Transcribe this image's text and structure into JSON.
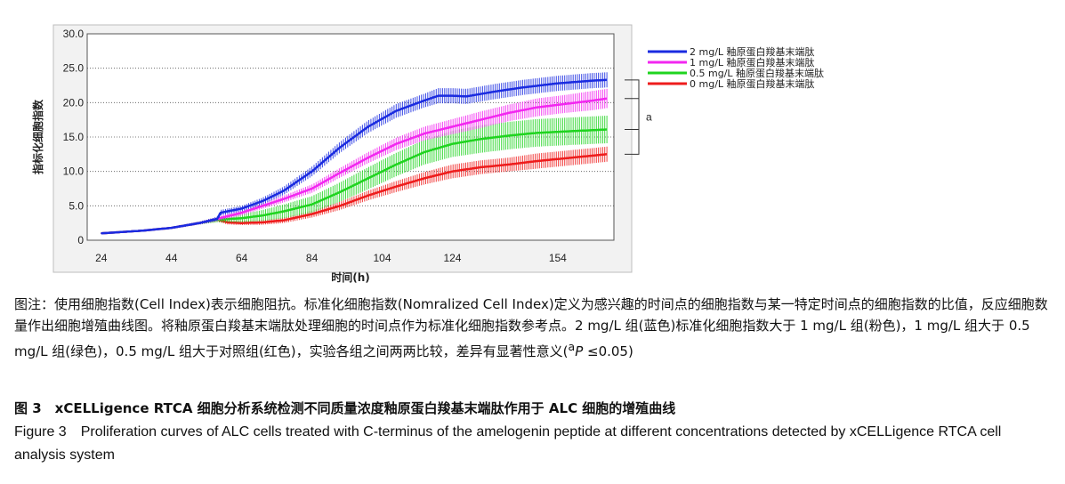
{
  "chart_data": {
    "type": "line",
    "title": "",
    "xlabel": "时间(h)",
    "ylabel": "指标化细胞指数",
    "xlim": [
      20,
      170
    ],
    "ylim": [
      0,
      30
    ],
    "x_ticks": [
      "24",
      "44",
      "64",
      "84",
      "104",
      "124",
      "154"
    ],
    "y_ticks": [
      "0",
      "5.0",
      "10.0",
      "15.0",
      "20.0",
      "25.0",
      "30.0"
    ],
    "grid": "horizontal-dotted",
    "legend_position": "right",
    "annotation": "a",
    "series": [
      {
        "name": "2 mg/L  釉原蛋白羧基末端肽",
        "color": "#1a2be0",
        "x": [
          24,
          36,
          44,
          52,
          57,
          58,
          64,
          70,
          76,
          84,
          92,
          100,
          108,
          116,
          120,
          124,
          128,
          136,
          144,
          154,
          164,
          168
        ],
        "y": [
          1.0,
          1.4,
          1.8,
          2.5,
          3.1,
          4.0,
          4.6,
          5.7,
          7.2,
          10.0,
          13.5,
          16.5,
          18.8,
          20.3,
          21.0,
          21.0,
          20.9,
          21.6,
          22.2,
          22.8,
          23.2,
          23.3
        ],
        "err": [
          0.1,
          0.1,
          0.15,
          0.2,
          0.3,
          0.4,
          0.4,
          0.5,
          0.6,
          0.7,
          0.8,
          0.9,
          1.0,
          1.0,
          1.1,
          1.1,
          1.1,
          1.1,
          1.1,
          1.1,
          1.1,
          1.1
        ]
      },
      {
        "name": "1 mg/L  釉原蛋白羧基末端肽",
        "color": "#f227f0",
        "x": [
          24,
          36,
          44,
          52,
          57,
          64,
          70,
          76,
          84,
          92,
          100,
          108,
          116,
          124,
          132,
          140,
          148,
          156,
          164,
          168
        ],
        "y": [
          1.0,
          1.4,
          1.8,
          2.5,
          3.1,
          4.0,
          5.0,
          6.0,
          7.5,
          9.8,
          12.0,
          14.0,
          15.5,
          16.5,
          17.5,
          18.5,
          19.3,
          19.8,
          20.3,
          20.6
        ],
        "err": [
          0.1,
          0.1,
          0.15,
          0.2,
          0.3,
          0.4,
          0.4,
          0.5,
          0.6,
          0.7,
          0.8,
          0.9,
          1.0,
          1.1,
          1.2,
          1.2,
          1.3,
          1.3,
          1.4,
          1.4
        ]
      },
      {
        "name": "0.5 mg/L  釉原蛋白羧基末端肽",
        "color": "#1fd41f",
        "x": [
          24,
          36,
          44,
          52,
          57,
          64,
          70,
          76,
          84,
          92,
          100,
          108,
          116,
          124,
          132,
          140,
          148,
          156,
          164,
          168
        ],
        "y": [
          1.0,
          1.4,
          1.8,
          2.5,
          3.0,
          3.2,
          3.6,
          4.2,
          5.2,
          7.0,
          9.0,
          11.0,
          12.8,
          14.0,
          14.7,
          15.2,
          15.6,
          15.8,
          16.0,
          16.1
        ],
        "err": [
          0.1,
          0.1,
          0.15,
          0.2,
          0.4,
          0.6,
          0.8,
          1.0,
          1.2,
          1.4,
          1.6,
          1.7,
          1.8,
          1.9,
          2.0,
          2.0,
          2.0,
          2.0,
          2.0,
          2.0
        ]
      },
      {
        "name": "0 mg/L  釉原蛋白羧基末端肽",
        "color": "#ee1c1c",
        "x": [
          24,
          36,
          44,
          52,
          57,
          60,
          64,
          70,
          76,
          84,
          92,
          100,
          108,
          116,
          124,
          132,
          140,
          148,
          156,
          164,
          168
        ],
        "y": [
          1.0,
          1.4,
          1.8,
          2.5,
          3.0,
          2.6,
          2.5,
          2.6,
          2.9,
          3.8,
          5.0,
          6.5,
          7.8,
          9.0,
          10.0,
          10.6,
          11.0,
          11.5,
          11.9,
          12.3,
          12.5
        ],
        "err": [
          0.1,
          0.1,
          0.15,
          0.2,
          0.3,
          0.3,
          0.3,
          0.35,
          0.4,
          0.5,
          0.6,
          0.7,
          0.8,
          0.9,
          1.0,
          1.0,
          1.0,
          1.1,
          1.1,
          1.1,
          1.1
        ]
      }
    ]
  },
  "caption": {
    "note": "图注：使用细胞指数(Cell Index)表示细胞阻抗。标准化细胞指数(Nomralized Cell Index)定义为感兴趣的时间点的细胞指数与某一特定时间点的细胞指数的比值，反应细胞数量作出细胞增殖曲线图。将釉原蛋白羧基末端肽处理细胞的时间点作为标准化细胞指数参考点。2 mg/L 组(蓝色)标准化细胞指数大于 1 mg/L 组(粉色)，1 mg/L 组大于 0.5 mg/L 组(绿色)，0.5 mg/L 组大于对照组(红色)，实验各组之间两两比较，差异有显著性意义(",
    "note_sup": "a",
    "note_italic": "P",
    "note_end": " ≤0.05)",
    "figure_title_cn": "图 3　xCELLigence RTCA 细胞分析系统检测不同质量浓度釉原蛋白羧基末端肽作用于 ALC 细胞的增殖曲线",
    "figure_title_en": "Figure 3　Proliferation curves of ALC cells treated with C-terminus of the amelogenin peptide at different concentrations detected by xCELLigence RTCA cell analysis system"
  }
}
